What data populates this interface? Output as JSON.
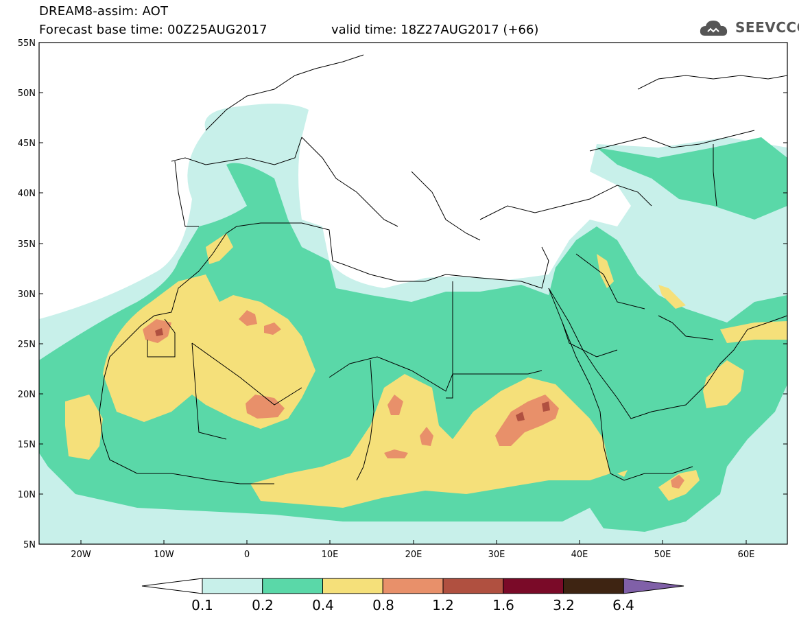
{
  "header": {
    "title": "DREAM8-assim: AOT",
    "base_time": "Forecast base time: 00Z25AUG2017",
    "valid_time": "valid time: 18Z27AUG2017 (+66)",
    "logo_text": "SEEVCCC"
  },
  "map": {
    "lat_labels": [
      "55N",
      "50N",
      "45N",
      "40N",
      "35N",
      "30N",
      "25N",
      "20N",
      "15N",
      "10N",
      "5N"
    ],
    "lon_labels": [
      "20W",
      "10W",
      "0",
      "10E",
      "20E",
      "30E",
      "40E",
      "50E",
      "60E"
    ],
    "lon_range": [
      -25,
      65
    ],
    "lat_range": [
      5,
      55
    ],
    "legend_levels": [
      "0.1",
      "0.2",
      "0.4",
      "0.8",
      "1.2",
      "1.6",
      "3.2",
      "6.4"
    ],
    "legend_colors": [
      "#ffffff",
      "#c8f0ea",
      "#5ad8a8",
      "#f5e07a",
      "#e8906a",
      "#b05040",
      "#7a0a28",
      "#3e2412",
      "#8060a8"
    ]
  }
}
